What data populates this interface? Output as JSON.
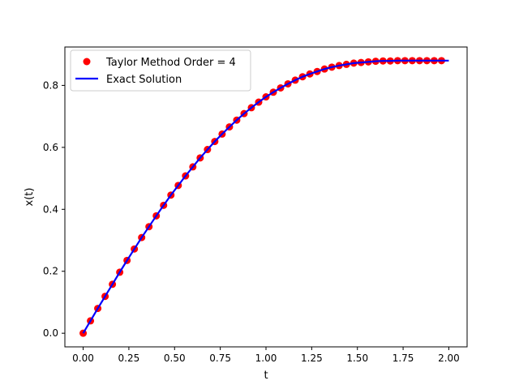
{
  "chart_data": {
    "type": "line",
    "title": "",
    "xlabel": "t",
    "ylabel": "x(t)",
    "xlim": [
      -0.1,
      2.1
    ],
    "ylim": [
      -0.044,
      0.924
    ],
    "xticks": [
      0.0,
      0.25,
      0.5,
      0.75,
      1.0,
      1.25,
      1.5,
      1.75,
      2.0
    ],
    "xtick_labels": [
      "0.00",
      "0.25",
      "0.50",
      "0.75",
      "1.00",
      "1.25",
      "1.50",
      "1.75",
      "2.00"
    ],
    "yticks": [
      0.0,
      0.2,
      0.4,
      0.6,
      0.8
    ],
    "ytick_labels": [
      "0.0",
      "0.2",
      "0.4",
      "0.6",
      "0.8"
    ],
    "grid": false,
    "legend_position": "upper-left",
    "series": [
      {
        "name": "Taylor Method Order = 4",
        "kind": "scatter",
        "color": "#ff0000",
        "x": [
          0.0,
          0.04,
          0.08,
          0.12,
          0.16,
          0.2,
          0.24,
          0.28,
          0.32,
          0.36,
          0.4,
          0.44,
          0.48,
          0.52,
          0.56,
          0.6,
          0.64,
          0.68,
          0.72,
          0.76,
          0.8,
          0.84,
          0.88,
          0.92,
          0.96,
          1.0,
          1.04,
          1.08,
          1.12,
          1.16,
          1.2,
          1.24,
          1.28,
          1.32,
          1.36,
          1.4,
          1.44,
          1.48,
          1.52,
          1.56,
          1.6,
          1.64,
          1.68,
          1.72,
          1.76,
          1.8,
          1.84,
          1.88,
          1.92,
          1.96
        ],
        "y": [
          0.0,
          0.04,
          0.08,
          0.119,
          0.158,
          0.197,
          0.235,
          0.272,
          0.309,
          0.344,
          0.379,
          0.413,
          0.446,
          0.477,
          0.508,
          0.537,
          0.566,
          0.593,
          0.619,
          0.643,
          0.666,
          0.688,
          0.709,
          0.728,
          0.746,
          0.763,
          0.778,
          0.792,
          0.805,
          0.817,
          0.828,
          0.837,
          0.845,
          0.853,
          0.859,
          0.864,
          0.868,
          0.872,
          0.874,
          0.876,
          0.878,
          0.879,
          0.879,
          0.88,
          0.88,
          0.88,
          0.88,
          0.88,
          0.88,
          0.88
        ]
      },
      {
        "name": "Exact Solution",
        "kind": "line",
        "color": "#0000ff",
        "x": [
          0.0,
          0.04,
          0.08,
          0.12,
          0.16,
          0.2,
          0.24,
          0.28,
          0.32,
          0.36,
          0.4,
          0.44,
          0.48,
          0.52,
          0.56,
          0.6,
          0.64,
          0.68,
          0.72,
          0.76,
          0.8,
          0.84,
          0.88,
          0.92,
          0.96,
          1.0,
          1.04,
          1.08,
          1.12,
          1.16,
          1.2,
          1.24,
          1.28,
          1.32,
          1.36,
          1.4,
          1.44,
          1.48,
          1.52,
          1.56,
          1.6,
          1.64,
          1.68,
          1.72,
          1.76,
          1.8,
          1.84,
          1.88,
          1.92,
          1.96,
          2.0
        ],
        "y": [
          0.0,
          0.04,
          0.08,
          0.119,
          0.158,
          0.197,
          0.235,
          0.272,
          0.309,
          0.344,
          0.379,
          0.413,
          0.446,
          0.477,
          0.508,
          0.537,
          0.566,
          0.593,
          0.619,
          0.643,
          0.666,
          0.688,
          0.709,
          0.728,
          0.746,
          0.763,
          0.778,
          0.792,
          0.805,
          0.817,
          0.828,
          0.837,
          0.845,
          0.853,
          0.859,
          0.864,
          0.868,
          0.872,
          0.874,
          0.876,
          0.878,
          0.879,
          0.879,
          0.88,
          0.88,
          0.88,
          0.88,
          0.88,
          0.88,
          0.88,
          0.88
        ]
      }
    ]
  }
}
